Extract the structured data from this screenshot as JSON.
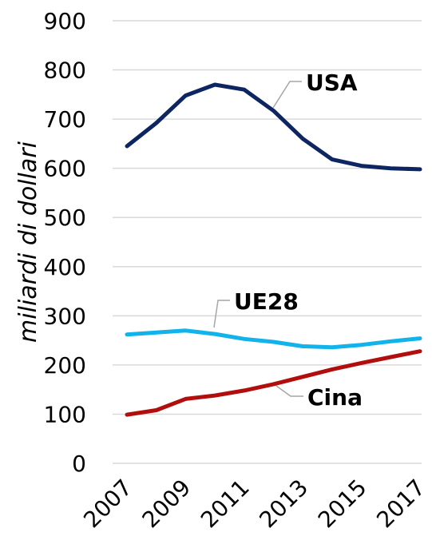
{
  "chart_data": {
    "type": "line",
    "title": "",
    "xlabel": "",
    "ylabel": "miliardi di dollari",
    "ylim": [
      0,
      900
    ],
    "yticks": [
      "0",
      "100",
      "200",
      "300",
      "400",
      "500",
      "600",
      "700",
      "800",
      "900"
    ],
    "x": [
      2007,
      2008,
      2009,
      2010,
      2011,
      2012,
      2013,
      2014,
      2015,
      2016,
      2017
    ],
    "xtick_labels": [
      "2007",
      "2009",
      "2011",
      "2013",
      "2015",
      "2017"
    ],
    "grid": "horizontal",
    "legend": "inline labels",
    "series": [
      {
        "name": "USA",
        "color": "#0d2561",
        "values": [
          645,
          692,
          748,
          770,
          760,
          717,
          660,
          618,
          605,
          600,
          598
        ]
      },
      {
        "name": "UE28",
        "color": "#11b3ea",
        "values": [
          262,
          266,
          270,
          263,
          253,
          247,
          238,
          236,
          241,
          248,
          254
        ]
      },
      {
        "name": "Cina",
        "color": "#b30e0e",
        "values": [
          99,
          108,
          131,
          138,
          148,
          161,
          176,
          191,
          204,
          216,
          228
        ]
      }
    ]
  }
}
